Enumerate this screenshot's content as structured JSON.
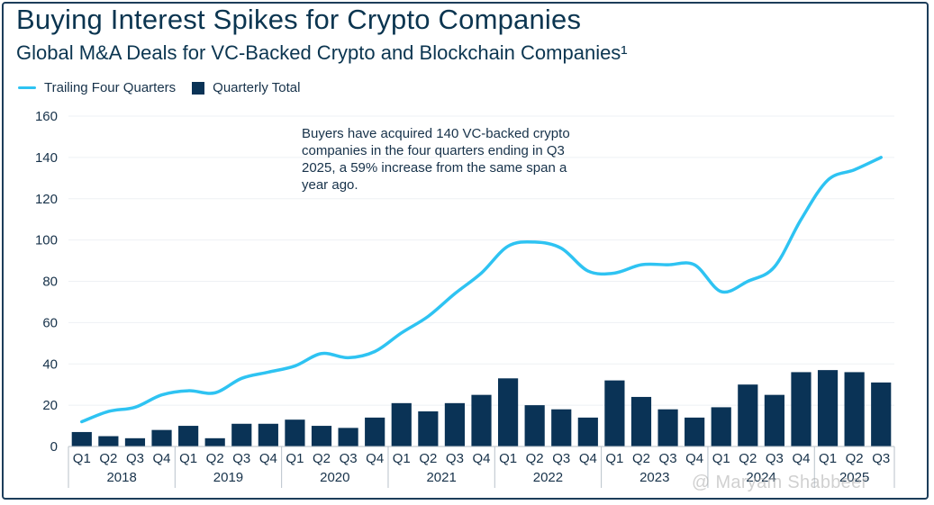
{
  "title": "Buying Interest Spikes for Crypto Companies",
  "subtitle": "Global M&A Deals for VC-Backed Crypto and Blockchain Companies¹",
  "legend": {
    "line_label": "Trailing Four Quarters",
    "bar_label": "Quarterly Total"
  },
  "annotation": "Buyers have acquired 140 VC-backed crypto companies in the four quarters ending in Q3 2025, a 59% increase from the same span a year ago.",
  "watermark": "@ Maryam Shabbeer",
  "chart_data": {
    "type": "bar",
    "title": "Buying Interest Spikes for Crypto Companies",
    "ylim": [
      0,
      160
    ],
    "yticks": [
      0,
      20,
      40,
      60,
      80,
      100,
      120,
      140,
      160
    ],
    "grid": true,
    "legend_position": "top-left",
    "categories": [
      "Q1",
      "Q2",
      "Q3",
      "Q4",
      "Q1",
      "Q2",
      "Q3",
      "Q4",
      "Q1",
      "Q2",
      "Q3",
      "Q4",
      "Q1",
      "Q2",
      "Q3",
      "Q4",
      "Q1",
      "Q2",
      "Q3",
      "Q4",
      "Q1",
      "Q2",
      "Q3",
      "Q4",
      "Q1",
      "Q2",
      "Q3",
      "Q4",
      "Q1",
      "Q2",
      "Q3"
    ],
    "years": [
      {
        "label": "2018",
        "quarters": 4
      },
      {
        "label": "2019",
        "quarters": 4
      },
      {
        "label": "2020",
        "quarters": 4
      },
      {
        "label": "2021",
        "quarters": 4
      },
      {
        "label": "2022",
        "quarters": 4
      },
      {
        "label": "2023",
        "quarters": 4
      },
      {
        "label": "2024",
        "quarters": 4
      },
      {
        "label": "2025",
        "quarters": 3
      }
    ],
    "series": [
      {
        "name": "Quarterly Total",
        "type": "bar",
        "color": "#0a3356",
        "values": [
          7,
          5,
          4,
          8,
          10,
          4,
          11,
          11,
          13,
          10,
          9,
          14,
          21,
          17,
          21,
          25,
          33,
          20,
          18,
          14,
          32,
          24,
          18,
          14,
          19,
          30,
          25,
          36,
          37,
          36,
          31
        ]
      },
      {
        "name": "Trailing Four Quarters",
        "type": "line",
        "color": "#2ec3f2",
        "values": [
          12,
          17,
          19,
          25,
          27,
          26,
          33,
          36,
          39,
          45,
          43,
          46,
          55,
          63,
          74,
          84,
          97,
          99,
          96,
          85,
          84,
          88,
          88,
          88,
          75,
          80,
          87,
          110,
          129,
          134,
          140
        ]
      }
    ]
  }
}
